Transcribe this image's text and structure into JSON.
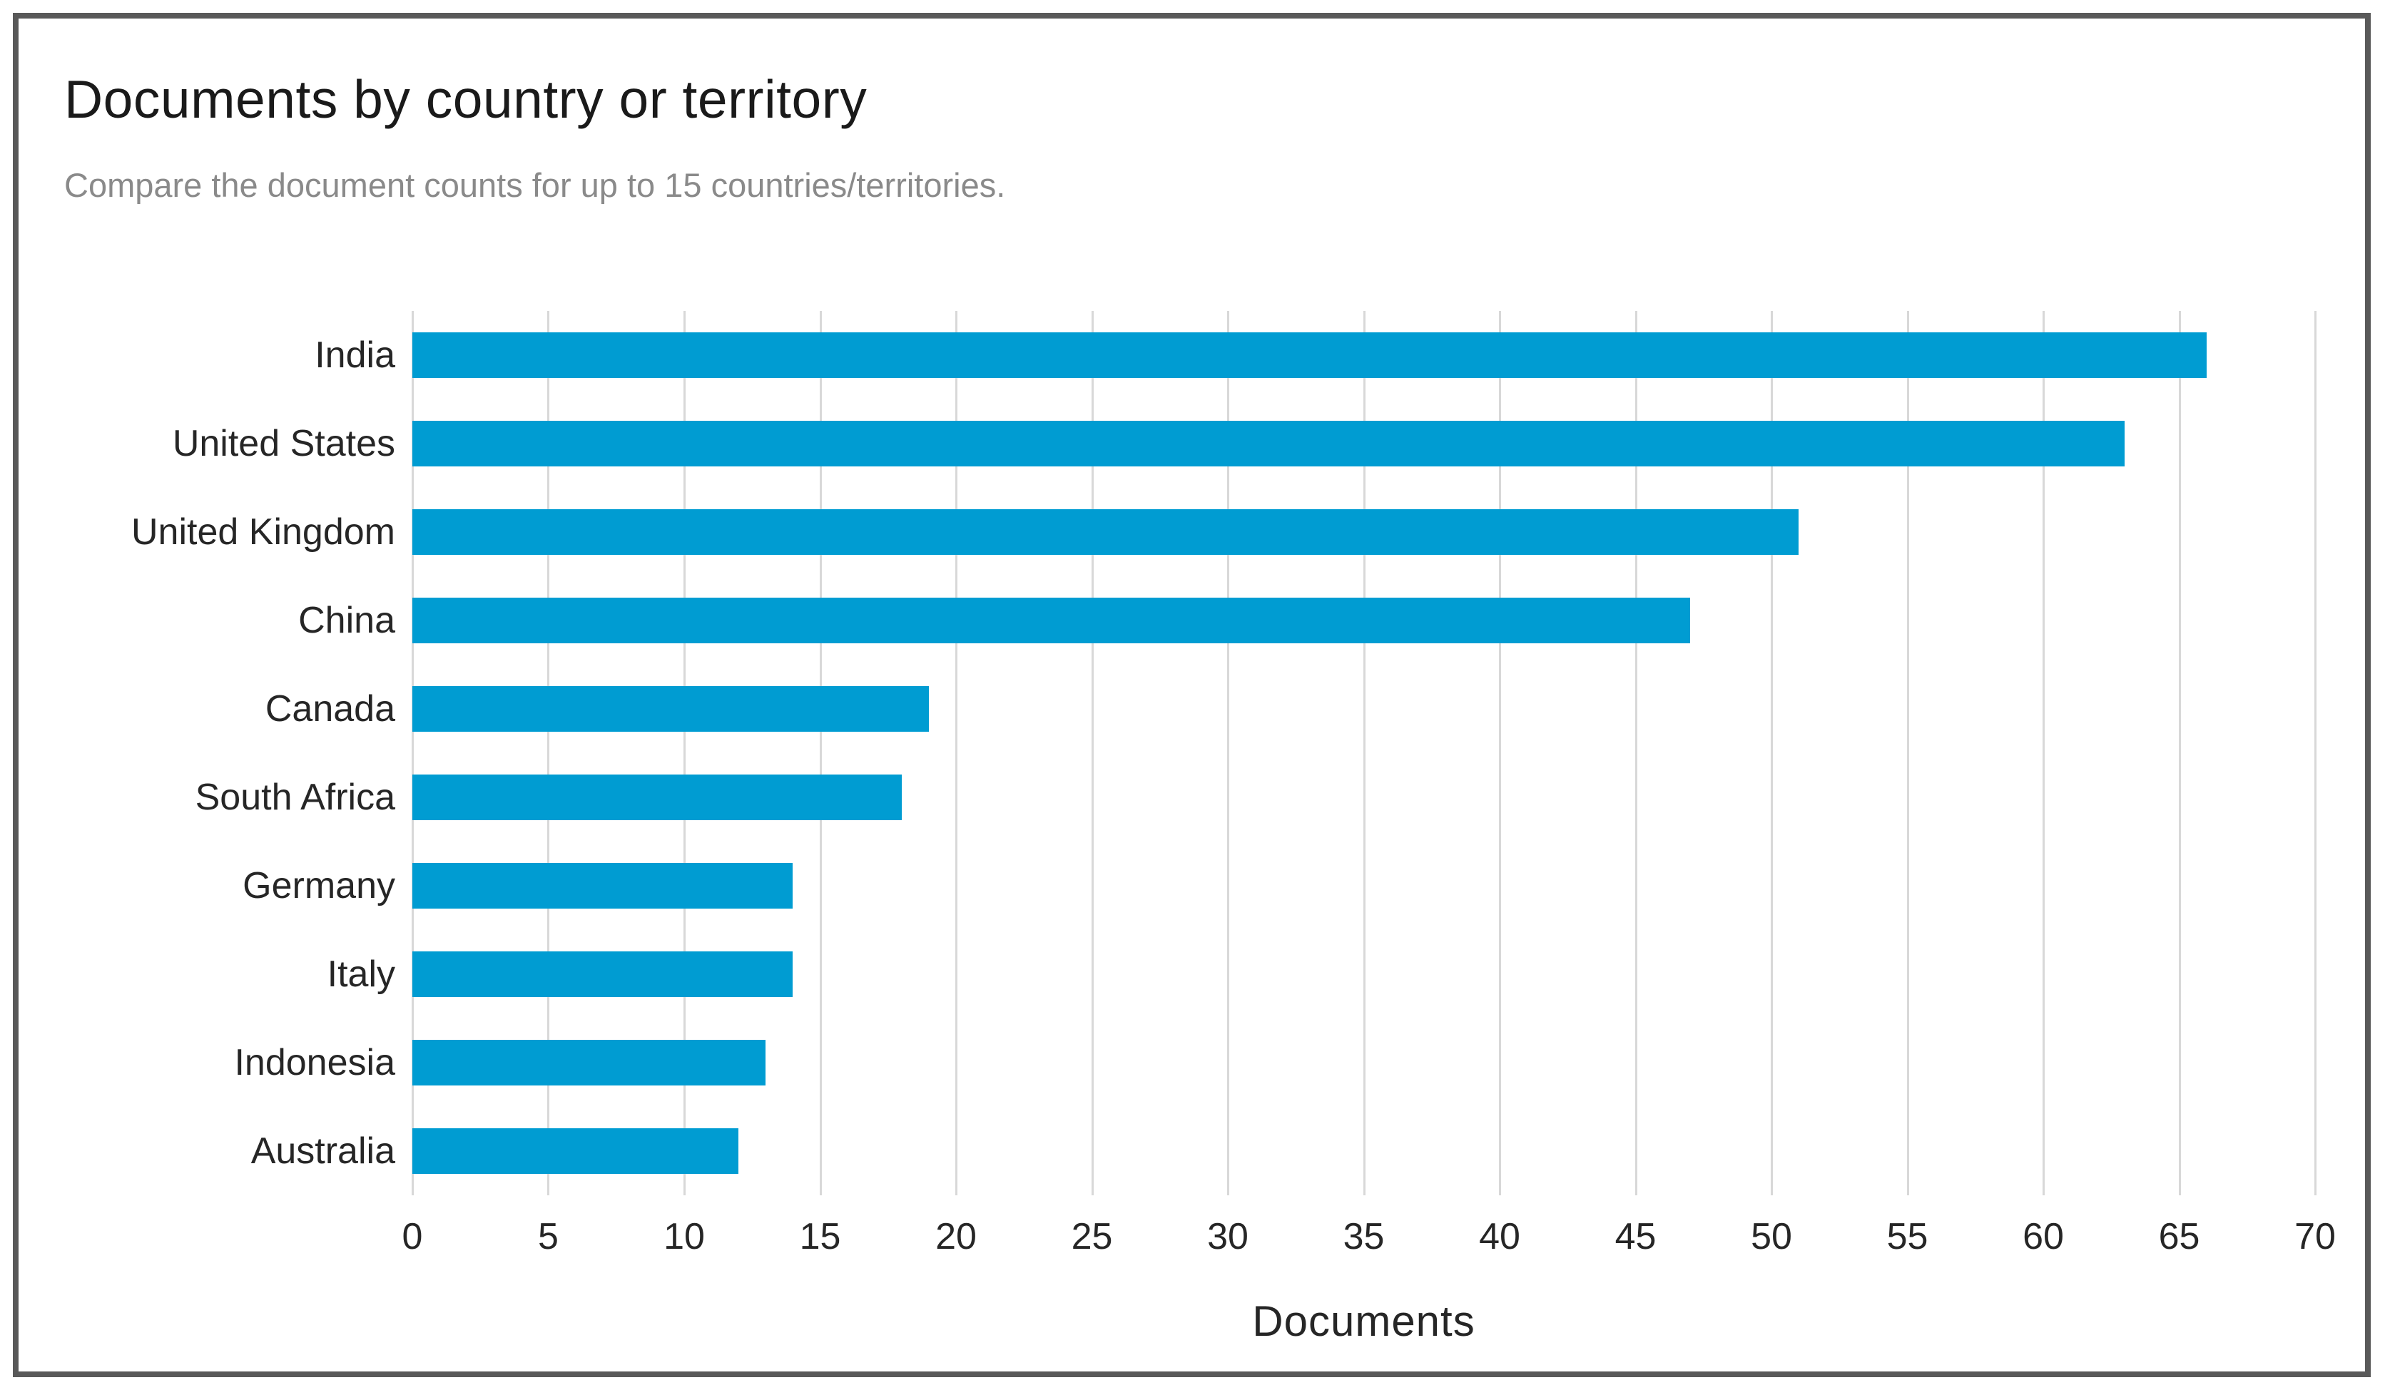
{
  "header": {
    "title": "Documents by country or territory",
    "subtitle": "Compare the document counts for up to 15 countries/territories."
  },
  "chart_data": {
    "type": "bar",
    "orientation": "horizontal",
    "title": "Documents by country or territory",
    "subtitle": "Compare the document counts for up to 15 countries/territories.",
    "categories": [
      "India",
      "United States",
      "United Kingdom",
      "China",
      "Canada",
      "South Africa",
      "Germany",
      "Italy",
      "Indonesia",
      "Australia"
    ],
    "values": [
      66,
      63,
      51,
      47,
      19,
      18,
      14,
      14,
      13,
      12
    ],
    "xlabel": "Documents",
    "ylabel": "",
    "xlim": [
      0,
      70
    ],
    "xticks": [
      0,
      5,
      10,
      15,
      20,
      25,
      30,
      35,
      40,
      45,
      50,
      55,
      60,
      65,
      70
    ],
    "grid": "vertical",
    "legend": "none",
    "colors": {
      "bar": "#009cd2",
      "grid": "#d8d8d8",
      "border": "#595959",
      "title": "#1a1a1a",
      "subtitle": "#8a8a8a",
      "labels": "#262626"
    }
  }
}
